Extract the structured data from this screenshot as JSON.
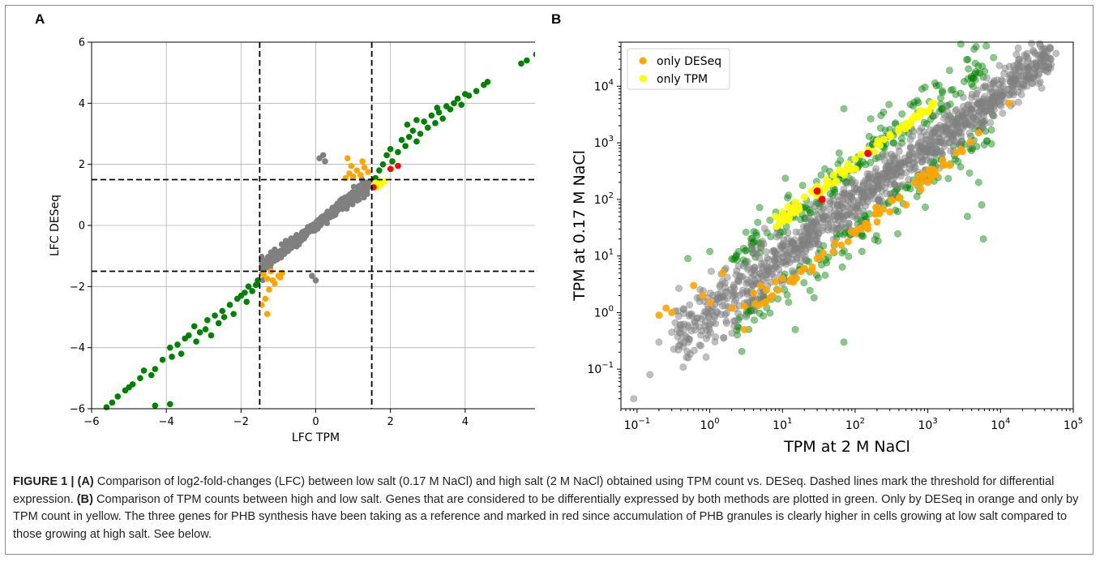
{
  "figure": {
    "panel_labels": [
      "A",
      "B"
    ],
    "caption": {
      "figure_number": "FIGURE 1 | ",
      "part_a_label": "(A)",
      "part_a_text": " Comparison of log2-fold-changes (LFC) between low salt (0.17 M NaCl) and high salt (2 M NaCl) obtained using TPM count vs. DESeq. Dashed lines mark the threshold for differential expression. ",
      "part_b_label": "(B)",
      "part_b_text": " Comparison of TPM counts between high and low salt. Genes that are considered to be differentially expressed by both methods are plotted in green. Only by DESeq in orange and only by TPM count in yellow. The three genes for PHB synthesis have been taking as a reference and marked in red since accumulation of PHB granules is clearly higher in cells growing at low salt compared to those growing at high salt. See below."
    }
  },
  "chart_data": [
    {
      "type": "scatter",
      "xlabel": "LFC TPM",
      "ylabel": "LFC DESeq",
      "xlim": [
        -6,
        6
      ],
      "ylim": [
        -6,
        6
      ],
      "xticks": [
        -6,
        -4,
        -2,
        0,
        2,
        4,
        6
      ],
      "yticks": [
        -6,
        -4,
        -2,
        0,
        2,
        4,
        6
      ],
      "grid": true,
      "thresholds": {
        "x": [
          -1.5,
          1.5
        ],
        "y": [
          -1.5,
          1.5
        ]
      },
      "colors": {
        "both": "#008000",
        "only_deseq": "#ffa500",
        "only_tpm": "#ffff00",
        "reference": "#ff0000",
        "none": "#808080"
      },
      "series": [
        {
          "group": "both",
          "points": [
            [
              -5.6,
              -5.95
            ],
            [
              -5.45,
              -5.8
            ],
            [
              -5.3,
              -5.6
            ],
            [
              -5.1,
              -5.4
            ],
            [
              -5.0,
              -5.3
            ],
            [
              -4.9,
              -5.2
            ],
            [
              -4.7,
              -5.0
            ],
            [
              -4.6,
              -4.75
            ],
            [
              -4.4,
              -4.9
            ],
            [
              -4.3,
              -4.7
            ],
            [
              -4.3,
              -5.9
            ],
            [
              -3.9,
              -5.85
            ],
            [
              -4.1,
              -4.4
            ],
            [
              -3.9,
              -4.0
            ],
            [
              -3.85,
              -4.3
            ],
            [
              -3.7,
              -3.9
            ],
            [
              -3.6,
              -4.2
            ],
            [
              -3.5,
              -3.7
            ],
            [
              -3.4,
              -3.6
            ],
            [
              -3.2,
              -3.8
            ],
            [
              -3.25,
              -3.3
            ],
            [
              -3.1,
              -3.5
            ],
            [
              -2.95,
              -3.4
            ],
            [
              -2.9,
              -3.1
            ],
            [
              -2.8,
              -3.6
            ],
            [
              -2.7,
              -2.95
            ],
            [
              -2.6,
              -3.2
            ],
            [
              -2.5,
              -2.8
            ],
            [
              -2.45,
              -3.0
            ],
            [
              -2.3,
              -2.6
            ],
            [
              -2.2,
              -2.9
            ],
            [
              -2.1,
              -2.4
            ],
            [
              -2.0,
              -2.3
            ],
            [
              -1.9,
              -2.2
            ],
            [
              -1.85,
              -2.5
            ],
            [
              -1.8,
              -2.0
            ],
            [
              -1.7,
              -2.15
            ],
            [
              -1.6,
              -1.95
            ],
            [
              -1.55,
              -1.8
            ],
            [
              1.6,
              1.55
            ],
            [
              1.7,
              1.8
            ],
            [
              1.8,
              2.0
            ],
            [
              1.9,
              2.3
            ],
            [
              2.0,
              2.5
            ],
            [
              2.05,
              2.1
            ],
            [
              2.2,
              2.4
            ],
            [
              2.3,
              2.8
            ],
            [
              2.4,
              2.6
            ],
            [
              2.5,
              2.9
            ],
            [
              2.6,
              3.1
            ],
            [
              2.7,
              2.75
            ],
            [
              2.8,
              3.0
            ],
            [
              2.9,
              3.4
            ],
            [
              3.0,
              3.2
            ],
            [
              3.1,
              3.6
            ],
            [
              3.2,
              3.35
            ],
            [
              3.3,
              3.7
            ],
            [
              3.4,
              3.5
            ],
            [
              3.5,
              3.9
            ],
            [
              3.6,
              3.8
            ],
            [
              3.7,
              4.0
            ],
            [
              3.8,
              4.15
            ],
            [
              3.9,
              3.95
            ],
            [
              4.0,
              4.3
            ],
            [
              4.1,
              4.25
            ],
            [
              4.3,
              4.4
            ],
            [
              4.5,
              4.6
            ],
            [
              4.6,
              4.7
            ],
            [
              5.5,
              5.3
            ],
            [
              5.65,
              5.4
            ],
            [
              5.9,
              5.6
            ],
            [
              2.45,
              3.3
            ],
            [
              2.7,
              3.45
            ],
            [
              3.25,
              3.85
            ]
          ]
        },
        {
          "group": "only_deseq",
          "points": [
            [
              -1.4,
              -1.6
            ],
            [
              -1.3,
              -1.75
            ],
            [
              -1.2,
              -1.5
            ],
            [
              -1.1,
              -1.9
            ],
            [
              -1.0,
              -1.65
            ],
            [
              -0.9,
              -1.55
            ],
            [
              -1.25,
              -2.1
            ],
            [
              -1.35,
              -2.4
            ],
            [
              -1.3,
              -2.9
            ],
            [
              -1.45,
              -2.6
            ],
            [
              -1.15,
              -1.8
            ],
            [
              -0.95,
              -1.7
            ],
            [
              0.8,
              1.55
            ],
            [
              0.9,
              1.7
            ],
            [
              1.0,
              1.6
            ],
            [
              1.1,
              1.8
            ],
            [
              1.2,
              1.65
            ],
            [
              1.3,
              1.9
            ],
            [
              0.85,
              2.2
            ],
            [
              0.95,
              1.95
            ],
            [
              1.25,
              2.1
            ],
            [
              1.4,
              1.75
            ]
          ]
        },
        {
          "group": "only_tpm",
          "points": [
            [
              1.55,
              1.3
            ],
            [
              1.6,
              1.4
            ],
            [
              1.65,
              1.25
            ],
            [
              1.7,
              1.45
            ],
            [
              1.75,
              1.35
            ],
            [
              1.85,
              1.45
            ]
          ]
        },
        {
          "group": "reference",
          "points": [
            [
              1.55,
              1.25
            ],
            [
              2.0,
              1.85
            ],
            [
              2.2,
              1.95
            ]
          ]
        },
        {
          "group": "none",
          "points": [
            [
              0.0,
              -1.8
            ],
            [
              -0.1,
              -1.65
            ],
            [
              0.2,
              2.3
            ],
            [
              0.25,
              2.1
            ],
            [
              0.1,
              2.2
            ]
          ]
        }
      ],
      "none_trend": {
        "x_range": [
          -1.45,
          1.45
        ],
        "slope": 0.95,
        "count": 520,
        "spread": 0.12
      }
    },
    {
      "type": "scatter",
      "xscale": "log",
      "yscale": "log",
      "xlabel": "TPM at 2 M NaCl",
      "ylabel": "TPM at 0.17 M NaCl",
      "xlim": [
        0.06,
        100000
      ],
      "ylim": [
        0.02,
        60000
      ],
      "xticks": [
        "10^-1",
        "10^0",
        "10^1",
        "10^2",
        "10^3",
        "10^4",
        "10^5"
      ],
      "yticks": [
        "10^-1",
        "10^0",
        "10^1",
        "10^2",
        "10^3",
        "10^4"
      ],
      "grid": false,
      "legend": {
        "placement": "top-left",
        "entries": [
          "only DESeq",
          "only TPM"
        ]
      },
      "colors": {
        "both": "#008000",
        "only_deseq": "#ffa500",
        "only_tpm": "#ffff00",
        "reference": "#ff0000",
        "none": "#808080"
      },
      "series": [
        {
          "group": "reference",
          "points": [
            [
              150,
              650
            ],
            [
              30,
              140
            ],
            [
              35,
              100
            ]
          ]
        },
        {
          "group": "only_deseq",
          "points": [
            [
              0.2,
              0.9
            ],
            [
              0.25,
              1.2
            ],
            [
              0.3,
              1.0
            ],
            [
              0.8,
              2.0
            ],
            [
              1.0,
              1.5
            ],
            [
              2.0,
              1.2
            ],
            [
              3.0,
              0.5
            ],
            [
              3.0,
              1.3
            ],
            [
              4.0,
              2.2
            ],
            [
              5.0,
              3.0
            ],
            [
              6.0,
              2.5
            ],
            [
              8.0,
              3.5
            ],
            [
              10,
              4.0
            ],
            [
              20,
              6.0
            ],
            [
              30,
              9.0
            ],
            [
              50,
              12
            ],
            [
              80,
              18
            ],
            [
              100,
              25
            ],
            [
              150,
              30
            ],
            [
              200,
              40
            ],
            [
              300,
              60
            ],
            [
              500,
              80
            ],
            [
              800,
              150
            ],
            [
              1000,
              200
            ],
            [
              2000,
              400
            ],
            [
              3000,
              700
            ],
            [
              5000,
              1500
            ],
            [
              13000,
              5000
            ],
            [
              0.6,
              3.0
            ],
            [
              1.5,
              5.0
            ]
          ]
        },
        {
          "group": "only_tpm",
          "points": [
            [
              8,
              50
            ],
            [
              10,
              60
            ],
            [
              12,
              75
            ],
            [
              15,
              90
            ],
            [
              20,
              110
            ],
            [
              25,
              140
            ],
            [
              30,
              170
            ],
            [
              40,
              220
            ],
            [
              50,
              270
            ],
            [
              60,
              330
            ],
            [
              80,
              420
            ],
            [
              100,
              520
            ],
            [
              120,
              620
            ],
            [
              150,
              750
            ],
            [
              200,
              950
            ],
            [
              250,
              1150
            ],
            [
              300,
              1400
            ],
            [
              400,
              1800
            ],
            [
              500,
              2200
            ],
            [
              600,
              2600
            ],
            [
              800,
              3200
            ],
            [
              1000,
              3500
            ],
            [
              1200,
              5000
            ]
          ]
        }
      ],
      "none_cloud": {
        "count": 1100,
        "x_log_range": [
          -0.5,
          4.7
        ],
        "log_spread": 0.18
      },
      "both_cloud": {
        "count": 380
      },
      "none_extra_points": [
        [
          0.09,
          0.03
        ],
        [
          0.15,
          0.08
        ],
        [
          0.2,
          0.3
        ],
        [
          0.3,
          0.45
        ],
        [
          0.5,
          0.6
        ],
        [
          58000,
          38000
        ],
        [
          20000,
          22000
        ],
        [
          25000,
          20000
        ],
        [
          16000,
          13000
        ]
      ],
      "both_extra_points": [
        [
          1.0,
          12
        ],
        [
          0.5,
          9
        ],
        [
          8000,
          32000
        ],
        [
          70,
          4000
        ],
        [
          5500,
          80
        ],
        [
          5800,
          20
        ],
        [
          3500,
          50
        ],
        [
          5000,
          200
        ],
        [
          2000,
          3000
        ],
        [
          70,
          0.3
        ],
        [
          15,
          0.5
        ]
      ]
    }
  ]
}
